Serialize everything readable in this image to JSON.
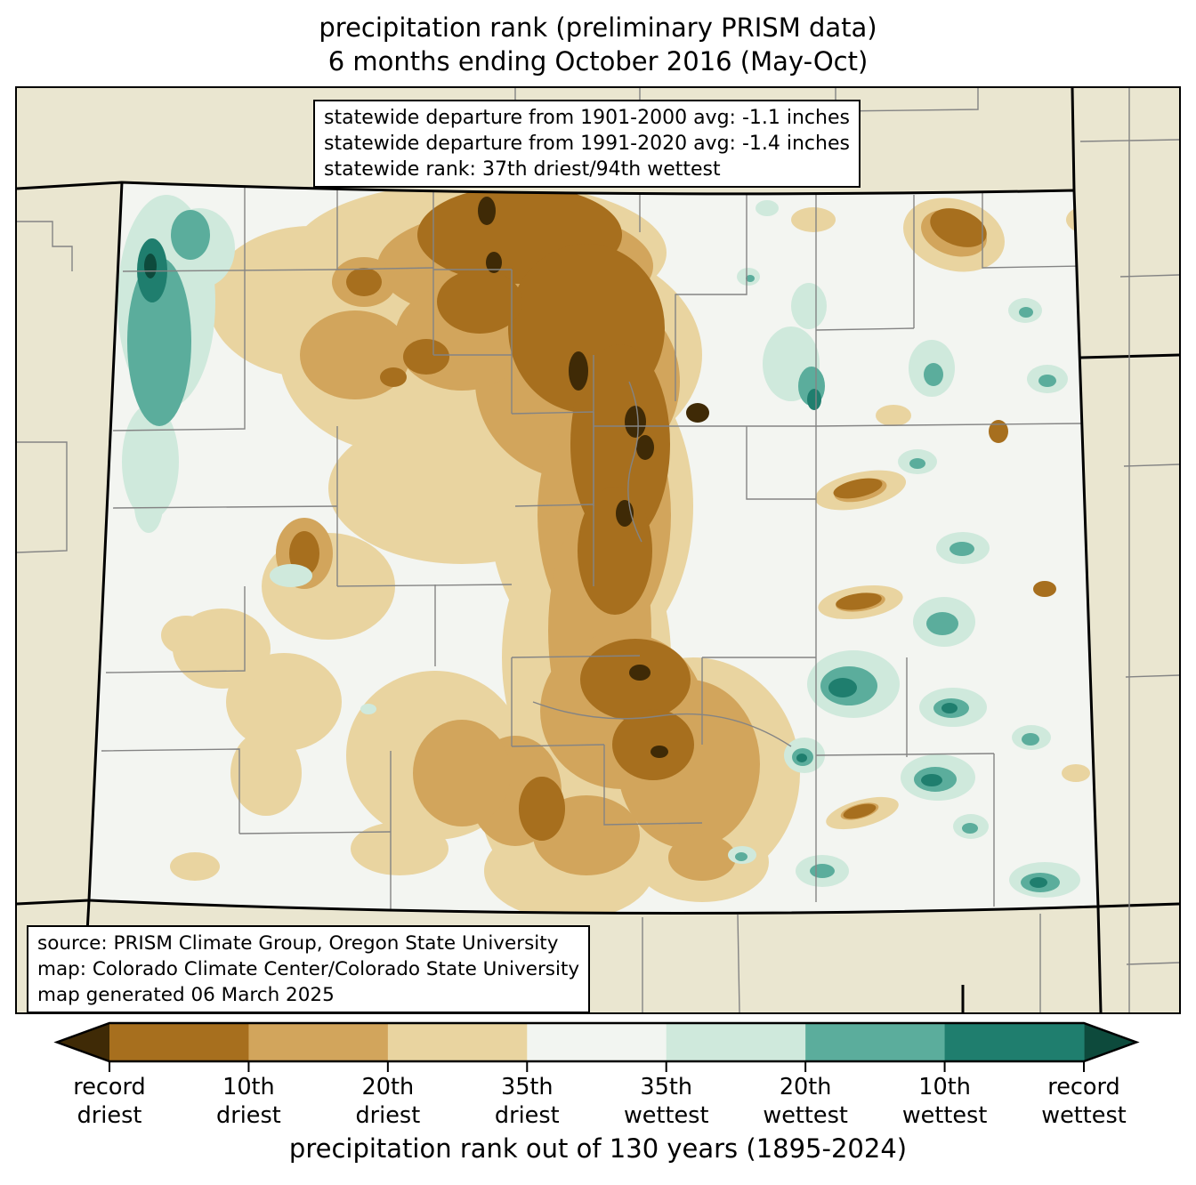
{
  "title": {
    "line1": "precipitation rank (preliminary PRISM data)",
    "line2": "6 months ending October 2016 (May-Oct)"
  },
  "stats_box": {
    "line1": "statewide departure from 1901-2000 avg: -1.1 inches",
    "line2": "statewide departure from 1991-2020 avg: -1.4 inches",
    "line3": "statewide rank: 37th driest/94th wettest"
  },
  "source_box": {
    "line1": "source: PRISM Climate Group, Oregon State University",
    "line2": "map: Colorado Climate Center/Colorado State University",
    "line3": "map generated 06 March 2025"
  },
  "xlabel": "precipitation rank out of 130 years (1895-2024)",
  "legend": {
    "tick_labels": [
      [
        "record",
        "driest"
      ],
      [
        "10th",
        "driest"
      ],
      [
        "20th",
        "driest"
      ],
      [
        "35th",
        "driest"
      ],
      [
        "35th",
        "wettest"
      ],
      [
        "20th",
        "wettest"
      ],
      [
        "10th",
        "wettest"
      ],
      [
        "record",
        "wettest"
      ]
    ],
    "segment_colors": [
      "#a76f1e",
      "#d2a55c",
      "#e9d4a0",
      "#f2f5f1",
      "#cfe9dc",
      "#5bad9c",
      "#1f7e6e"
    ],
    "arrow_left_color": "#3f2a06",
    "arrow_right_color": "#0d4a3c"
  },
  "map": {
    "region": "Colorado",
    "background_color": "#eae6d0",
    "state_fill": "#f3f5f1",
    "county_line_color": "#848484",
    "state_border_color": "#000000"
  }
}
